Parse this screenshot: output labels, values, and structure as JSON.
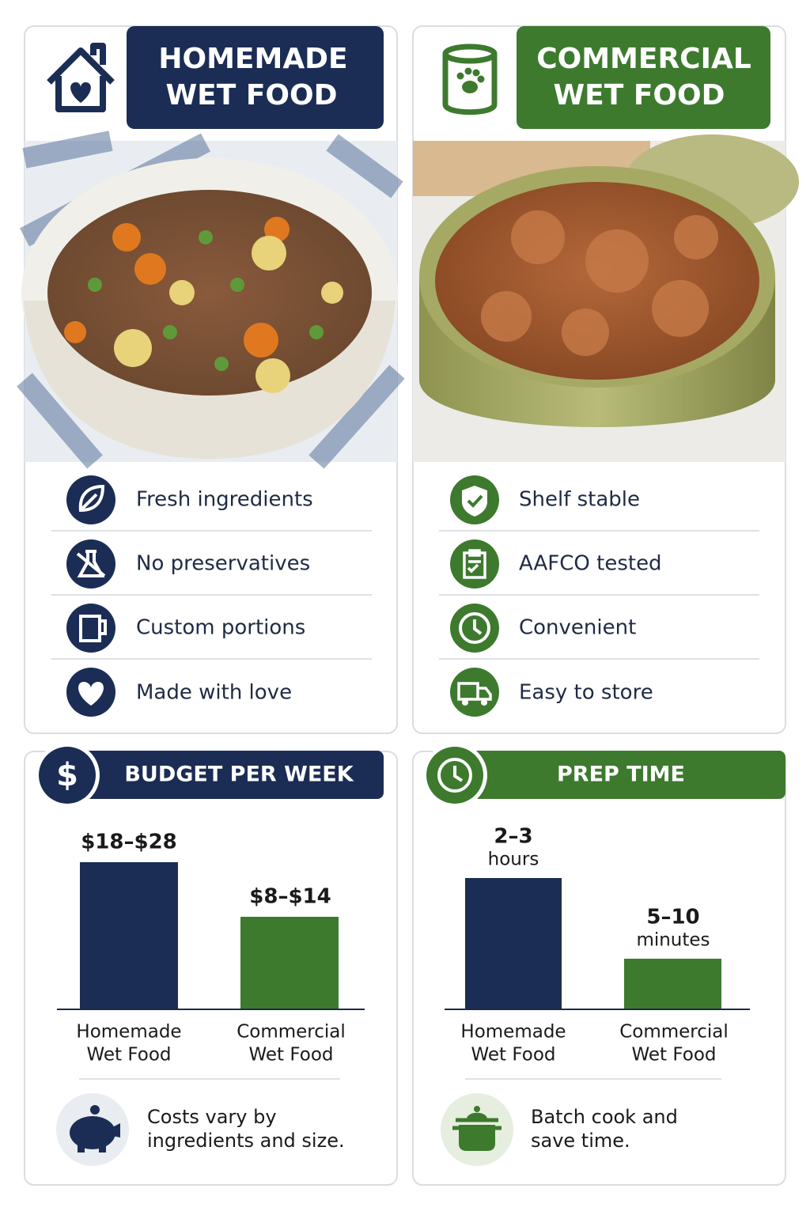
{
  "panels": [
    {
      "title_lines": [
        "HOMEMADE",
        "WET FOOD"
      ],
      "features": [
        "Fresh ingredients",
        "No preservatives",
        "Custom portions",
        "Made with love"
      ]
    },
    {
      "title_lines": [
        "COMMERCIAL",
        "WET FOOD"
      ],
      "features": [
        "Shelf stable",
        "AAFCO tested",
        "Convenient",
        "Easy to store"
      ]
    }
  ],
  "budget": {
    "icon_text": "$",
    "title": "BUDGET PER WEEK",
    "bars": [
      {
        "value_label_lines": [
          "$18–$28"
        ],
        "label_lines": [
          "Homemade",
          "Wet Food"
        ]
      },
      {
        "value_label_lines": [
          "$8–$14"
        ],
        "label_lines": [
          "Commercial",
          "Wet Food"
        ]
      }
    ],
    "note_lines": [
      "Costs vary by",
      "ingredients and size."
    ]
  },
  "prep": {
    "title": "PREP TIME",
    "bars": [
      {
        "value_label_lines": [
          "2–3",
          "hours"
        ],
        "label_lines": [
          "Homemade",
          "Wet Food"
        ]
      },
      {
        "value_label_lines": [
          "5–10",
          "minutes"
        ],
        "label_lines": [
          "Commercial",
          "Wet Food"
        ]
      }
    ],
    "note_lines": [
      "Batch cook and",
      "save time."
    ]
  }
}
